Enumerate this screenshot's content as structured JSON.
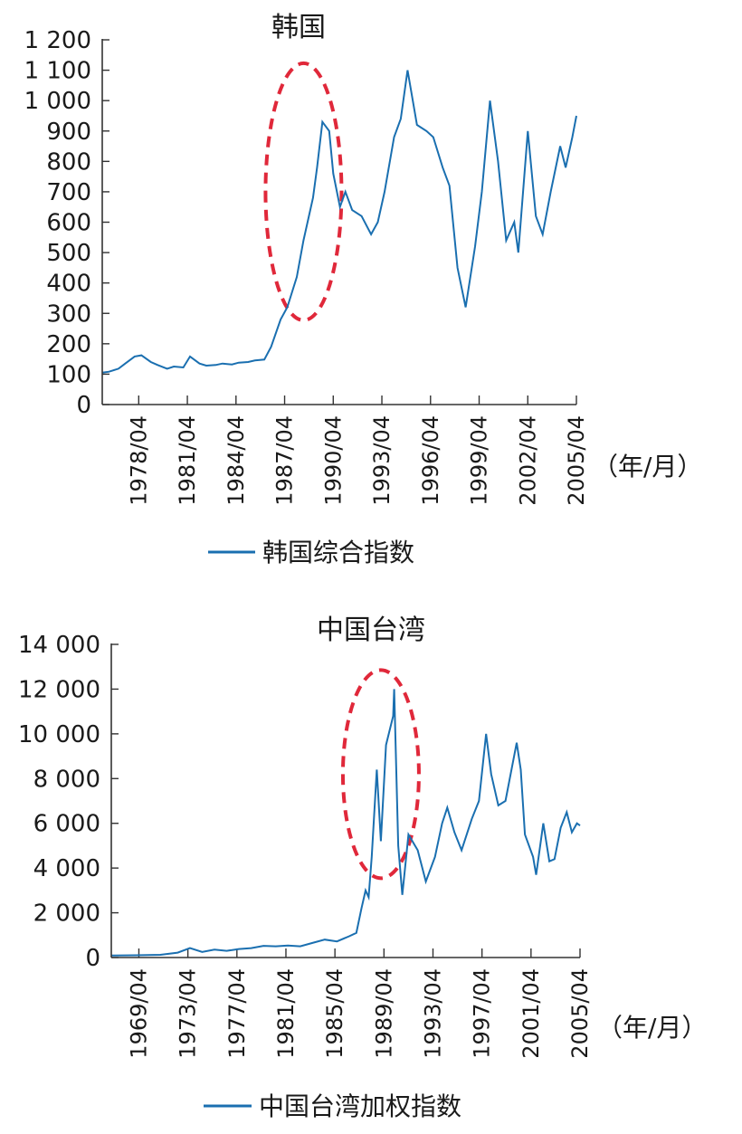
{
  "chart_data": [
    {
      "type": "line",
      "title": "韩国",
      "unit_label": "（年/月）",
      "legend": "韩国综合指数",
      "x_range": [
        "1976/01",
        "2005/04"
      ],
      "ylim": [
        0,
        1200
      ],
      "yticks": [
        0,
        100,
        200,
        300,
        400,
        500,
        600,
        700,
        800,
        900,
        1000,
        1100,
        1200
      ],
      "ytick_labels": [
        "0",
        "100",
        "200",
        "300",
        "400",
        "500",
        "600",
        "700",
        "800",
        "900",
        "1 000",
        "1 100",
        "1 200"
      ],
      "xticks": [
        "1978/04",
        "1981/04",
        "1984/04",
        "1987/04",
        "1990/04",
        "1993/04",
        "1996/04",
        "1999/04",
        "2002/04",
        "2005/04"
      ],
      "highlight_ellipse": {
        "x_center": "1988/06",
        "y_center": 700,
        "color": "#e0283a"
      },
      "line_color": "#1a6fb0",
      "series": [
        {
          "x": [
            "1976/01",
            "1976/06",
            "1977/01",
            "1977/06",
            "1978/01",
            "1978/06",
            "1979/01",
            "1979/06",
            "1980/01",
            "1980/06",
            "1981/01",
            "1981/06",
            "1982/01",
            "1982/06",
            "1983/01",
            "1983/06",
            "1984/01",
            "1984/06",
            "1985/01",
            "1985/06",
            "1986/01",
            "1986/06",
            "1987/01",
            "1987/06",
            "1988/01",
            "1988/06",
            "1989/01",
            "1989/04",
            "1989/08",
            "1990/01",
            "1990/04",
            "1990/09",
            "1991/01",
            "1991/06",
            "1992/01",
            "1992/08",
            "1993/01",
            "1993/06",
            "1994/01",
            "1994/06",
            "1994/11",
            "1995/06",
            "1996/01",
            "1996/06",
            "1997/01",
            "1997/06",
            "1997/12",
            "1998/06",
            "1999/01",
            "1999/06",
            "1999/12",
            "2000/06",
            "2000/12",
            "2001/06",
            "2001/09",
            "2002/04",
            "2002/10",
            "2003/03",
            "2003/09",
            "2004/04",
            "2004/08",
            "2005/01",
            "2005/04"
          ],
          "y": [
            105,
            108,
            118,
            135,
            158,
            162,
            140,
            130,
            118,
            125,
            122,
            158,
            135,
            128,
            130,
            135,
            132,
            138,
            140,
            145,
            148,
            190,
            280,
            320,
            420,
            540,
            680,
            780,
            930,
            900,
            760,
            650,
            700,
            640,
            620,
            560,
            600,
            700,
            880,
            940,
            1100,
            920,
            900,
            880,
            780,
            720,
            450,
            320,
            520,
            700,
            1000,
            800,
            540,
            600,
            500,
            900,
            620,
            560,
            700,
            850,
            780,
            880,
            950
          ]
        }
      ]
    },
    {
      "type": "line",
      "title": "中国台湾",
      "unit_label": "（年/月）",
      "legend": "中国台湾加权指数",
      "x_range": [
        "1967/01",
        "2005/04"
      ],
      "ylim": [
        0,
        14000
      ],
      "yticks": [
        0,
        2000,
        4000,
        6000,
        8000,
        10000,
        12000,
        14000
      ],
      "ytick_labels": [
        "0",
        "2 000",
        "4 000",
        "6 000",
        "8 000",
        "10 000",
        "12 000",
        "14 000"
      ],
      "xticks": [
        "1969/04",
        "1973/04",
        "1977/04",
        "1981/04",
        "1985/04",
        "1989/04",
        "1993/04",
        "1997/04",
        "2001/04",
        "2005/04"
      ],
      "highlight_ellipse": {
        "x_center": "1989/01",
        "y_center": 8200,
        "color": "#e0283a"
      },
      "line_color": "#1a6fb0",
      "series": [
        {
          "x": [
            "1967/01",
            "1969/01",
            "1971/01",
            "1972/06",
            "1973/06",
            "1974/06",
            "1975/06",
            "1976/06",
            "1977/06",
            "1978/06",
            "1979/06",
            "1980/06",
            "1981/06",
            "1982/06",
            "1983/06",
            "1984/06",
            "1985/06",
            "1986/06",
            "1987/01",
            "1987/06",
            "1987/10",
            "1988/01",
            "1988/04",
            "1988/09",
            "1989/01",
            "1989/06",
            "1990/01",
            "1990/02",
            "1990/06",
            "1990/10",
            "1991/04",
            "1992/01",
            "1992/09",
            "1993/06",
            "1994/01",
            "1994/06",
            "1995/01",
            "1995/08",
            "1996/06",
            "1997/01",
            "1997/08",
            "1998/01",
            "1998/08",
            "1999/03",
            "2000/02",
            "2000/06",
            "2000/10",
            "2001/06",
            "2001/09",
            "2002/04",
            "2002/10",
            "2003/03",
            "2003/09",
            "2004/03",
            "2004/08",
            "2005/01",
            "2005/04"
          ],
          "y": [
            90,
            100,
            120,
            220,
            420,
            250,
            350,
            300,
            380,
            420,
            520,
            500,
            540,
            500,
            650,
            800,
            720,
            950,
            1100,
            2200,
            3000,
            2700,
            4500,
            8400,
            5200,
            9500,
            10800,
            12000,
            5000,
            2800,
            5500,
            4800,
            3400,
            4500,
            6000,
            6700,
            5600,
            4800,
            6200,
            7000,
            10000,
            8200,
            6800,
            7000,
            9600,
            8400,
            5500,
            4500,
            3700,
            6000,
            4300,
            4400,
            5800,
            6500,
            5600,
            6000,
            5900
          ]
        }
      ]
    }
  ]
}
